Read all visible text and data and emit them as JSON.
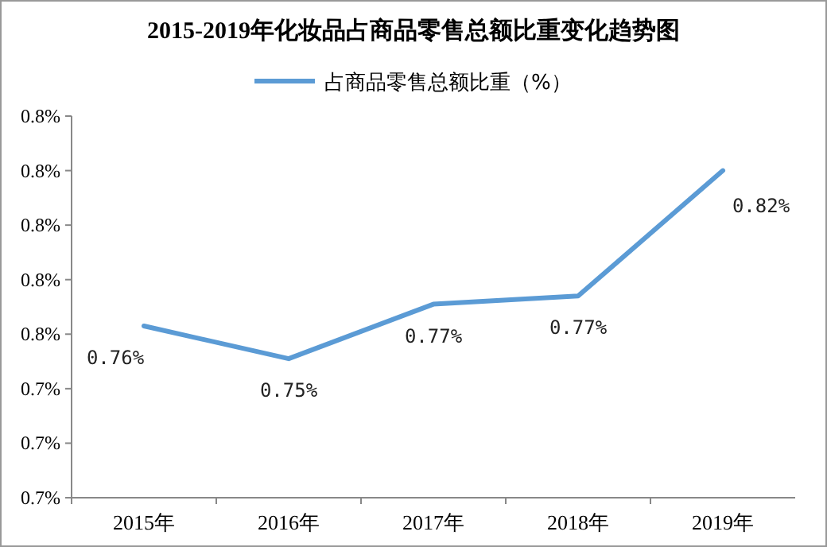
{
  "chart_data": {
    "type": "line",
    "title": "2015-2019年化妆品占商品零售总额比重变化趋势图",
    "categories": [
      "2015年",
      "2016年",
      "2017年",
      "2018年",
      "2019年"
    ],
    "series": [
      {
        "name": "占商品零售总额比重（%）",
        "color": "#5b9bd5",
        "values": [
          0.763,
          0.751,
          0.771,
          0.774,
          0.82
        ],
        "value_labels": [
          "0.76%",
          "0.75%",
          "0.77%",
          "0.77%",
          "0.82%"
        ]
      }
    ],
    "ylim": [
      0.7,
      0.84
    ],
    "yticks": [
      {
        "value": 0.7,
        "label": "0.7%"
      },
      {
        "value": 0.72,
        "label": "0.7%"
      },
      {
        "value": 0.74,
        "label": "0.7%"
      },
      {
        "value": 0.76,
        "label": "0.8%"
      },
      {
        "value": 0.78,
        "label": "0.8%"
      },
      {
        "value": 0.8,
        "label": "0.8%"
      },
      {
        "value": 0.82,
        "label": "0.8%"
      },
      {
        "value": 0.84,
        "label": "0.8%"
      }
    ],
    "grid": false,
    "legend": "top",
    "marker": "none",
    "line_style": "solid"
  }
}
